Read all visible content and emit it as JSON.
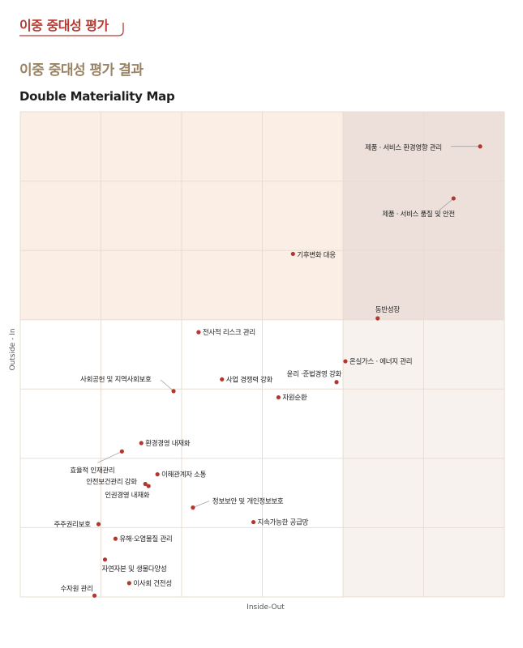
{
  "header": {
    "section_tag": "이중 중대성 평가",
    "subtitle": "이중 중대성 평가 결과",
    "chart_title": "Double Materiality Map"
  },
  "colors": {
    "accent": "#b73a33",
    "subtitle": "#9a8466",
    "dot": "#b2372f",
    "zone_top": "#fbeee4",
    "zone_right": "#f7f2ee",
    "zone_both": "#ede0da",
    "grid": "#e9dcd2"
  },
  "chart_data": {
    "type": "scatter",
    "xlabel": "Inside-Out",
    "ylabel": "Outside - In",
    "xlim": [
      0,
      6
    ],
    "ylim": [
      0,
      7
    ],
    "grid": true,
    "highlight": {
      "x_threshold": 4,
      "y_threshold": 4
    },
    "points": [
      {
        "label": "제품 · 서비스 환경영향 관리",
        "x": 5.7,
        "y": 6.5
      },
      {
        "label": "제품 · 서비스 품질 및 안전",
        "x": 5.37,
        "y": 5.75
      },
      {
        "label": "기후변화 대응",
        "x": 3.38,
        "y": 4.95
      },
      {
        "label": "동반성장",
        "x": 4.43,
        "y": 4.02
      },
      {
        "label": "전사적 리스크 관리",
        "x": 2.21,
        "y": 3.82
      },
      {
        "label": "온실가스 · 에너지 관리",
        "x": 4.03,
        "y": 3.4
      },
      {
        "label": "사업 경쟁력 강화",
        "x": 2.5,
        "y": 3.14
      },
      {
        "label": "윤리 ·준법경영 강화",
        "x": 3.92,
        "y": 3.1
      },
      {
        "label": "사회공헌 및 지역사회보호",
        "x": 1.9,
        "y": 2.97
      },
      {
        "label": "자원순환",
        "x": 3.2,
        "y": 2.88
      },
      {
        "label": "환경경영 내재화",
        "x": 1.5,
        "y": 2.22
      },
      {
        "label": "효율적 인재관리",
        "x": 1.26,
        "y": 2.1
      },
      {
        "label": "이해관계자 소통",
        "x": 1.7,
        "y": 1.77
      },
      {
        "label": "안전보건관리 강화",
        "x": 1.55,
        "y": 1.63
      },
      {
        "label": "인권경영 내재화",
        "x": 1.59,
        "y": 1.6
      },
      {
        "label": "정보보안 및 개인정보보호",
        "x": 2.14,
        "y": 1.29
      },
      {
        "label": "지속가능한 공급망",
        "x": 2.89,
        "y": 1.08
      },
      {
        "label": "주주권리보호",
        "x": 0.97,
        "y": 1.05
      },
      {
        "label": "유해·오염물질 관리",
        "x": 1.18,
        "y": 0.84
      },
      {
        "label": "자연자본 및 생물다양성",
        "x": 1.05,
        "y": 0.54
      },
      {
        "label": "이사회 건전성",
        "x": 1.35,
        "y": 0.2
      },
      {
        "label": "수자원 관리",
        "x": 0.92,
        "y": 0.02
      }
    ]
  }
}
